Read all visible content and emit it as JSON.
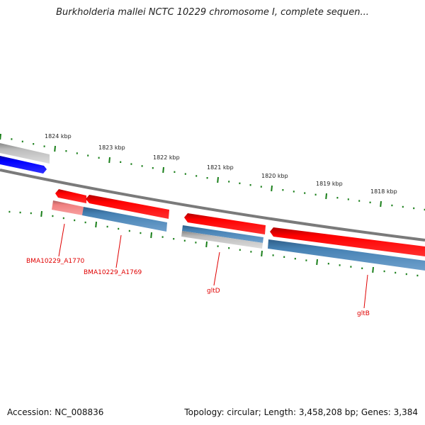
{
  "title": "Burkholderia mallei NCTC 10229 chromosome I, complete sequen...",
  "footer": {
    "accession": "Accession: NC_008836",
    "summary": "Topology: circular; Length: 3,458,208 bp; Genes: 3,384"
  },
  "scale": {
    "labels": [
      "1824 kbp",
      "1823 kbp",
      "1822 kbp",
      "1821 kbp",
      "1820 kbp",
      "1819 kbp",
      "1818 kbp"
    ],
    "tick_color": "#1a7f1a"
  },
  "genes": [
    {
      "name": "BMA10229_A1770",
      "strand": "reverse"
    },
    {
      "name": "BMA10229_A1769",
      "strand": "reverse"
    },
    {
      "name": "gltD",
      "strand": "reverse"
    },
    {
      "name": "gltB",
      "strand": "reverse"
    }
  ],
  "colors": {
    "gene": "#ff0000",
    "cds": "#4682b4",
    "backbone": "#808080",
    "other": "#0000ff",
    "label": "#e00000"
  }
}
